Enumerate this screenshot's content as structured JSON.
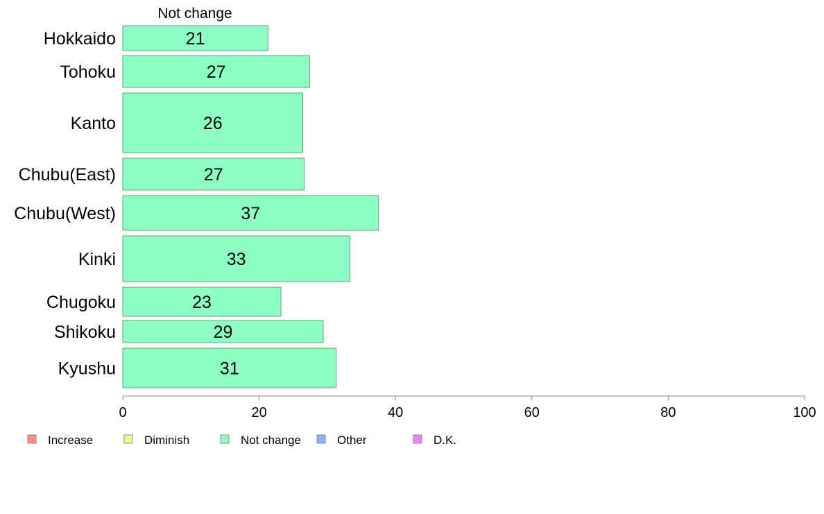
{
  "chart_data": {
    "type": "bar",
    "orientation": "horizontal",
    "segment_label": "Not change",
    "categories": [
      "Hokkaido",
      "Tohoku",
      "Kanto",
      "Chubu(East)",
      "Chubu(West)",
      "Kinki",
      "Chugoku",
      "Shikoku",
      "Kyushu"
    ],
    "series": [
      {
        "name": "Not change",
        "color": "#8cffc2",
        "values": [
          21.3,
          27.4,
          26.4,
          26.6,
          37.5,
          33.3,
          23.2,
          29.4,
          31.3
        ],
        "labels": [
          "21",
          "27",
          "26",
          "27",
          "37",
          "33",
          "23",
          "29",
          "31"
        ]
      }
    ],
    "xlim": [
      0,
      100
    ],
    "xticks": [
      0,
      20,
      40,
      60,
      80,
      100
    ],
    "xtick_labels": [
      "0",
      "20",
      "40",
      "60",
      "80",
      "100"
    ],
    "grid": false,
    "legend_position": "bottom-left",
    "legend": [
      {
        "label": "Increase",
        "color": "#ff8a8a"
      },
      {
        "label": "Diminish",
        "color": "#eeff8a"
      },
      {
        "label": "Not change",
        "color": "#8cffc2"
      },
      {
        "label": "Other",
        "color": "#8ab4ff"
      },
      {
        "label": "D.K.",
        "color": "#ee82ee"
      }
    ],
    "bar_border_color": "#5fa37f",
    "axis_color": "#888888"
  }
}
